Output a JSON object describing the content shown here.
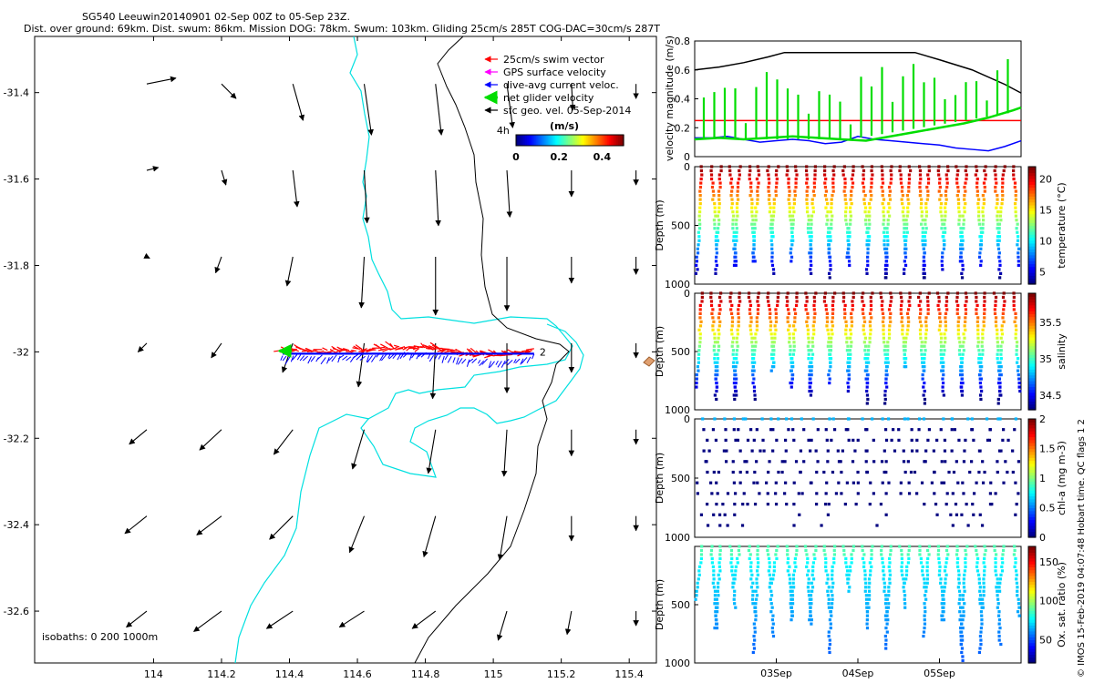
{
  "header": {
    "title": "SG540 Leeuwin20140901 02-Sep 00Z to 05-Sep 23Z.",
    "subtitle": "Dist. over ground: 69km. Dist. swum: 86km. Mission DOG: 78km. Swum: 103km. Gliding 25cm/s 285T COG-DAC=30cm/s 287T"
  },
  "credit": "© IMOS 15-Feb-2019 04:07:48 Hobart time. QC flags 1  2",
  "colors": {
    "map_bg": "#ffffff",
    "isobath_200": "#00e0e0",
    "isobath_1000": "#000000",
    "swim": "#ff0000",
    "gps": "#ff00ff",
    "dac": "#0000ff",
    "net": "#00dd00",
    "geo": "#000000"
  },
  "chart_data": [
    {
      "id": "map",
      "type": "scatter",
      "xlim": [
        113.65,
        115.48
      ],
      "ylim": [
        -32.72,
        -31.27
      ],
      "xticks": [
        "114",
        "114.2",
        "114.4",
        "114.6",
        "114.8",
        "115",
        "115.2",
        "115.4"
      ],
      "yticks": [
        "-31.4",
        "-31.6",
        "-31.8",
        "-32",
        "-32.2",
        "-32.4",
        "-32.6"
      ],
      "legend": {
        "items": [
          {
            "label": "25cm/s swim vector",
            "color": "#ff0000"
          },
          {
            "label": "GPS surface velocity",
            "color": "#ff00ff"
          },
          {
            "label": "dive-avg current veloc.",
            "color": "#0000ff"
          },
          {
            "label": "net glider velocity",
            "color": "#00dd00"
          },
          {
            "label": "sfc geo. vel. 05-Sep-2014",
            "color": "#000000"
          }
        ],
        "placement": "top-right"
      },
      "colorbar": {
        "title": "(m/s)",
        "ticks": [
          "0",
          "0.2",
          "0.4"
        ],
        "range": [
          0,
          0.5
        ]
      },
      "labels": {
        "start": "2",
        "end": "4h"
      },
      "isobath_label": "isobaths: 0   200   1000m",
      "track": {
        "start": [
          115.12,
          -32.0
        ],
        "end": [
          114.38,
          -32.0
        ]
      },
      "geo_grid": {
        "lons": [
          113.98,
          114.2,
          114.41,
          114.62,
          114.83,
          115.04,
          115.23,
          115.42
        ],
        "lats": [
          -31.38,
          -31.58,
          -31.78,
          -31.98,
          -32.18,
          -32.38,
          -32.6
        ],
        "rows": [
          [
            [
              0.2,
              0.04
            ],
            [
              0.1,
              -0.1
            ],
            [
              0.07,
              -0.25
            ],
            [
              0.05,
              -0.35
            ],
            [
              0.04,
              -0.35
            ],
            [
              0.04,
              -0.3
            ],
            [
              0.01,
              -0.18
            ],
            [
              0.0,
              -0.1
            ]
          ],
          [
            [
              0.08,
              0.02
            ],
            [
              0.03,
              -0.1
            ],
            [
              0.03,
              -0.25
            ],
            [
              0.02,
              -0.36
            ],
            [
              0.02,
              -0.38
            ],
            [
              0.02,
              -0.32
            ],
            [
              0.0,
              -0.18
            ],
            [
              0.0,
              -0.1
            ]
          ],
          [
            [
              0.02,
              -0.01
            ],
            [
              -0.04,
              -0.11
            ],
            [
              -0.04,
              -0.2
            ],
            [
              -0.02,
              -0.35
            ],
            [
              0.0,
              -0.4
            ],
            [
              0.0,
              -0.37
            ],
            [
              0.0,
              -0.18
            ],
            [
              0.0,
              -0.12
            ]
          ],
          [
            [
              -0.06,
              -0.06
            ],
            [
              -0.07,
              -0.1
            ],
            [
              -0.07,
              -0.2
            ],
            [
              -0.04,
              -0.3
            ],
            [
              -0.02,
              -0.38
            ],
            [
              0.0,
              -0.34
            ],
            [
              0.0,
              -0.2
            ],
            [
              0.0,
              -0.1
            ]
          ],
          [
            [
              -0.12,
              -0.1
            ],
            [
              -0.15,
              -0.14
            ],
            [
              -0.13,
              -0.17
            ],
            [
              -0.08,
              -0.27
            ],
            [
              -0.05,
              -0.3
            ],
            [
              -0.02,
              -0.32
            ],
            [
              0.0,
              -0.18
            ],
            [
              0.0,
              -0.1
            ]
          ],
          [
            [
              -0.15,
              -0.12
            ],
            [
              -0.17,
              -0.13
            ],
            [
              -0.16,
              -0.16
            ],
            [
              -0.1,
              -0.25
            ],
            [
              -0.08,
              -0.28
            ],
            [
              -0.05,
              -0.3
            ],
            [
              0.0,
              -0.17
            ],
            [
              0.0,
              -0.1
            ]
          ],
          [
            [
              -0.14,
              -0.11
            ],
            [
              -0.19,
              -0.14
            ],
            [
              -0.18,
              -0.12
            ],
            [
              -0.17,
              -0.11
            ],
            [
              -0.16,
              -0.12
            ],
            [
              -0.06,
              -0.2
            ],
            [
              -0.03,
              -0.16
            ],
            [
              0.0,
              -0.1
            ]
          ]
        ]
      }
    },
    {
      "id": "velocity",
      "type": "line",
      "ylabel": "velocity magnitude (m/s)",
      "yticks": [
        "0",
        "0.2",
        "0.4",
        "0.6",
        "0.8"
      ],
      "ylim": [
        0,
        0.8
      ],
      "x_range_days": [
        2.0,
        6.0
      ],
      "series": [
        {
          "color": "#000000",
          "x": [
            2.0,
            2.3,
            2.6,
            2.9,
            3.1,
            3.4,
            3.7,
            4.0,
            4.3,
            4.7,
            5.0,
            5.4,
            5.8,
            6.0
          ],
          "values": [
            0.6,
            0.62,
            0.65,
            0.69,
            0.72,
            0.72,
            0.72,
            0.72,
            0.72,
            0.72,
            0.67,
            0.6,
            0.5,
            0.44
          ]
        },
        {
          "color": "#ff0000",
          "x": [
            2.0,
            6.0
          ],
          "values": [
            0.25,
            0.25
          ]
        },
        {
          "color": "#0000ff",
          "x": [
            2.0,
            2.2,
            2.4,
            2.6,
            2.8,
            3.0,
            3.2,
            3.4,
            3.6,
            3.8,
            4.0,
            4.2,
            4.4,
            4.6,
            4.8,
            5.0,
            5.2,
            5.4,
            5.6,
            5.8,
            6.0
          ],
          "values": [
            0.13,
            0.13,
            0.14,
            0.12,
            0.1,
            0.11,
            0.12,
            0.11,
            0.09,
            0.1,
            0.14,
            0.12,
            0.11,
            0.1,
            0.09,
            0.08,
            0.06,
            0.05,
            0.04,
            0.07,
            0.11
          ]
        },
        {
          "color": "#00dd00",
          "x": [
            2.0,
            2.3,
            2.6,
            2.9,
            3.2,
            3.5,
            3.8,
            4.1,
            4.4,
            4.7,
            5.0,
            5.3,
            5.6,
            5.9,
            6.0
          ],
          "values": [
            0.12,
            0.13,
            0.12,
            0.13,
            0.14,
            0.13,
            0.12,
            0.11,
            0.14,
            0.17,
            0.2,
            0.23,
            0.27,
            0.32,
            0.34
          ]
        }
      ]
    },
    {
      "id": "temperature",
      "type": "scatter",
      "ylabel": "Depth (m)",
      "clabel": "temperature (°C)",
      "yticks": [
        "0",
        "500",
        "1000"
      ],
      "cticks": [
        "5",
        "10",
        "15",
        "20"
      ],
      "crange": [
        3,
        22
      ]
    },
    {
      "id": "salinity",
      "type": "scatter",
      "ylabel": "Depth (m)",
      "clabel": "salinity",
      "yticks": [
        "0",
        "500",
        "1000"
      ],
      "cticks": [
        "34.5",
        "35",
        "35.5"
      ],
      "crange": [
        34.3,
        35.9
      ]
    },
    {
      "id": "chla",
      "type": "scatter",
      "ylabel": "Depth (m)",
      "clabel": "chl-a (mg m-3)",
      "yticks": [
        "0",
        "500",
        "1000"
      ],
      "cticks": [
        "0",
        "0.5",
        "1",
        "1.5",
        "2"
      ],
      "crange": [
        0,
        2
      ]
    },
    {
      "id": "oxygen",
      "type": "scatter",
      "ylabel": "Depth (m)",
      "clabel": "Ox. sat. ratio (%)",
      "yticks": [
        "500",
        "1000"
      ],
      "cticks": [
        "50",
        "100",
        "150"
      ],
      "crange": [
        20,
        170
      ],
      "xticks": [
        "03Sep",
        "04Sep",
        "05Sep"
      ],
      "xtick_days": [
        3,
        4,
        5
      ]
    }
  ]
}
